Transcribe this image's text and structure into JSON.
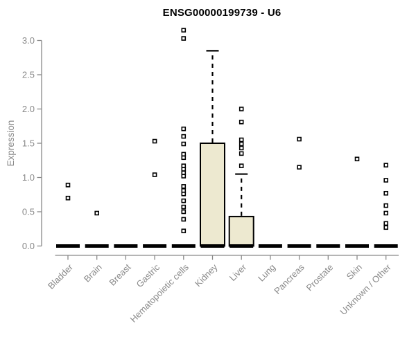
{
  "chart_data": {
    "type": "boxplot",
    "title": "ENSG00000199739 - U6",
    "ylabel": "Expression",
    "xlabel": "",
    "ylim": [
      0,
      3.2
    ],
    "yticks": [
      0,
      0.5,
      1,
      1.5,
      2,
      2.5,
      3
    ],
    "ytick_labels": [
      "0.0",
      "0.5",
      "1.0",
      "1.5",
      "2.0",
      "2.5",
      "3.0"
    ],
    "categories": [
      "Bladder",
      "Brain",
      "Breast",
      "Gastric",
      "Hematopoietic cells",
      "Kidney",
      "Liver",
      "Lung",
      "Pancreas",
      "Prostate",
      "Skin",
      "Unknown / Other"
    ],
    "grid": false,
    "legend": "none",
    "colors": {
      "box_fill": "#ede9d0",
      "box_stroke": "#000000",
      "marker": "#000000",
      "axis": "#898989",
      "title_color": "#000000",
      "background": "#ffffff"
    },
    "boxes": [
      {
        "category": "Bladder",
        "median": 0,
        "q1": 0,
        "q3": 0,
        "whisker_low": 0,
        "whisker_high": 0,
        "outliers": [
          0.89,
          0.7
        ]
      },
      {
        "category": "Brain",
        "median": 0,
        "q1": 0,
        "q3": 0,
        "whisker_low": 0,
        "whisker_high": 0,
        "outliers": [
          0.48
        ]
      },
      {
        "category": "Breast",
        "median": 0,
        "q1": 0,
        "q3": 0,
        "whisker_low": 0,
        "whisker_high": 0,
        "outliers": []
      },
      {
        "category": "Gastric",
        "median": 0,
        "q1": 0,
        "q3": 0,
        "whisker_low": 0,
        "whisker_high": 0,
        "outliers": [
          1.53,
          1.04
        ]
      },
      {
        "category": "Hematopoietic cells",
        "median": 0,
        "q1": 0,
        "q3": 0,
        "whisker_low": 0,
        "whisker_high": 0,
        "outliers": [
          3.15,
          3.03,
          1.71,
          1.6,
          1.49,
          1.34,
          1.29,
          1.17,
          1.12,
          1.07,
          1.02,
          0.87,
          0.81,
          0.76,
          0.66,
          0.57,
          0.5,
          0.39,
          0.22
        ]
      },
      {
        "category": "Kidney",
        "median": 0,
        "q1": 0,
        "q3": 1.5,
        "whisker_low": 0,
        "whisker_high": 2.85,
        "outliers": []
      },
      {
        "category": "Liver",
        "median": 0,
        "q1": 0,
        "q3": 0.43,
        "whisker_low": 0,
        "whisker_high": 1.05,
        "outliers": [
          2.0,
          1.81,
          1.55,
          1.49,
          1.43,
          1.35,
          1.17
        ]
      },
      {
        "category": "Lung",
        "median": 0,
        "q1": 0,
        "q3": 0,
        "whisker_low": 0,
        "whisker_high": 0,
        "outliers": []
      },
      {
        "category": "Pancreas",
        "median": 0,
        "q1": 0,
        "q3": 0,
        "whisker_low": 0,
        "whisker_high": 0,
        "outliers": [
          1.56,
          1.15
        ]
      },
      {
        "category": "Prostate",
        "median": 0,
        "q1": 0,
        "q3": 0,
        "whisker_low": 0,
        "whisker_high": 0,
        "outliers": []
      },
      {
        "category": "Skin",
        "median": 0,
        "q1": 0,
        "q3": 0,
        "whisker_low": 0,
        "whisker_high": 0,
        "outliers": [
          1.27
        ]
      },
      {
        "category": "Unknown / Other",
        "median": 0,
        "q1": 0,
        "q3": 0,
        "whisker_low": 0,
        "whisker_high": 0,
        "outliers": [
          1.18,
          0.96,
          0.77,
          0.59,
          0.48,
          0.33,
          0.27
        ]
      }
    ]
  }
}
